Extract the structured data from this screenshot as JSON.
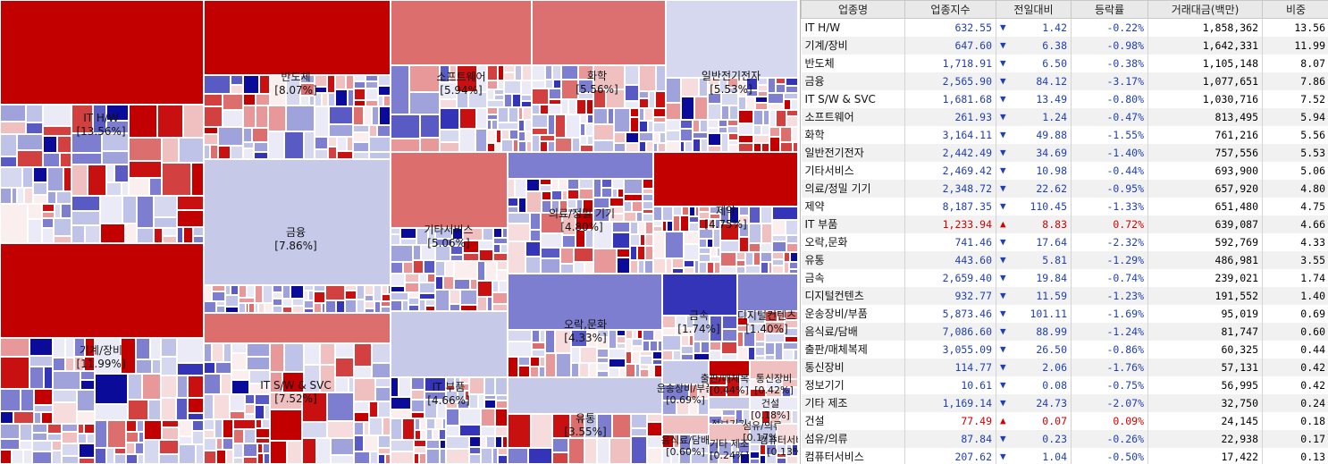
{
  "colors": {
    "up": "#d20000",
    "down": "#1f3fb4",
    "strong_red": "#c30000",
    "strong_blue": "#0b0b9a",
    "neutral": "#c9cbe8"
  },
  "table": {
    "headers": [
      "업종명",
      "업종지수",
      "전일대비",
      "등락률",
      "거래대금(백만)",
      "비중"
    ],
    "rows": [
      {
        "name": "IT H/W",
        "index": "632.55",
        "dir": "down",
        "diff": "1.42",
        "rate": "-0.22%",
        "amount": "1,858,362",
        "weight": "13.56"
      },
      {
        "name": "기계/장비",
        "index": "647.60",
        "dir": "down",
        "diff": "6.38",
        "rate": "-0.98%",
        "amount": "1,642,331",
        "weight": "11.99"
      },
      {
        "name": "반도체",
        "index": "1,718.91",
        "dir": "down",
        "diff": "6.50",
        "rate": "-0.38%",
        "amount": "1,105,148",
        "weight": "8.07"
      },
      {
        "name": "금융",
        "index": "2,565.90",
        "dir": "down",
        "diff": "84.12",
        "rate": "-3.17%",
        "amount": "1,077,651",
        "weight": "7.86"
      },
      {
        "name": "IT S/W & SVC",
        "index": "1,681.68",
        "dir": "down",
        "diff": "13.49",
        "rate": "-0.80%",
        "amount": "1,030,716",
        "weight": "7.52"
      },
      {
        "name": "소프트웨어",
        "index": "261.93",
        "dir": "down",
        "diff": "1.24",
        "rate": "-0.47%",
        "amount": "813,495",
        "weight": "5.94"
      },
      {
        "name": "화학",
        "index": "3,164.11",
        "dir": "down",
        "diff": "49.88",
        "rate": "-1.55%",
        "amount": "761,216",
        "weight": "5.56"
      },
      {
        "name": "일반전기전자",
        "index": "2,442.49",
        "dir": "down",
        "diff": "34.69",
        "rate": "-1.40%",
        "amount": "757,556",
        "weight": "5.53"
      },
      {
        "name": "기타서비스",
        "index": "2,469.42",
        "dir": "down",
        "diff": "10.98",
        "rate": "-0.44%",
        "amount": "693,900",
        "weight": "5.06"
      },
      {
        "name": "의료/정밀 기기",
        "index": "2,348.72",
        "dir": "down",
        "diff": "22.62",
        "rate": "-0.95%",
        "amount": "657,920",
        "weight": "4.80"
      },
      {
        "name": "제약",
        "index": "8,187.35",
        "dir": "down",
        "diff": "110.45",
        "rate": "-1.33%",
        "amount": "651,480",
        "weight": "4.75"
      },
      {
        "name": "IT 부품",
        "index": "1,233.94",
        "dir": "up",
        "diff": "8.83",
        "rate": "0.72%",
        "amount": "639,087",
        "weight": "4.66"
      },
      {
        "name": "오락,문화",
        "index": "741.46",
        "dir": "down",
        "diff": "17.64",
        "rate": "-2.32%",
        "amount": "592,769",
        "weight": "4.33"
      },
      {
        "name": "유통",
        "index": "443.60",
        "dir": "down",
        "diff": "5.81",
        "rate": "-1.29%",
        "amount": "486,981",
        "weight": "3.55"
      },
      {
        "name": "금속",
        "index": "2,659.40",
        "dir": "down",
        "diff": "19.84",
        "rate": "-0.74%",
        "amount": "239,021",
        "weight": "1.74"
      },
      {
        "name": "디지털컨텐츠",
        "index": "932.77",
        "dir": "down",
        "diff": "11.59",
        "rate": "-1.23%",
        "amount": "191,552",
        "weight": "1.40"
      },
      {
        "name": "운송장비/부품",
        "index": "5,873.46",
        "dir": "down",
        "diff": "101.11",
        "rate": "-1.69%",
        "amount": "95,019",
        "weight": "0.69"
      },
      {
        "name": "음식료/담배",
        "index": "7,086.60",
        "dir": "down",
        "diff": "88.99",
        "rate": "-1.24%",
        "amount": "81,747",
        "weight": "0.60"
      },
      {
        "name": "출판/매체복제",
        "index": "3,055.09",
        "dir": "down",
        "diff": "26.50",
        "rate": "-0.86%",
        "amount": "60,325",
        "weight": "0.44"
      },
      {
        "name": "통신장비",
        "index": "114.77",
        "dir": "down",
        "diff": "2.06",
        "rate": "-1.76%",
        "amount": "57,131",
        "weight": "0.42"
      },
      {
        "name": "정보기기",
        "index": "10.61",
        "dir": "down",
        "diff": "0.08",
        "rate": "-0.75%",
        "amount": "56,995",
        "weight": "0.42"
      },
      {
        "name": "기타 제조",
        "index": "1,169.14",
        "dir": "down",
        "diff": "24.73",
        "rate": "-2.07%",
        "amount": "32,750",
        "weight": "0.24"
      },
      {
        "name": "건설",
        "index": "77.49",
        "dir": "up",
        "diff": "0.07",
        "rate": "0.09%",
        "amount": "24,145",
        "weight": "0.18"
      },
      {
        "name": "섬유/의류",
        "index": "87.84",
        "dir": "down",
        "diff": "0.23",
        "rate": "-0.26%",
        "amount": "22,938",
        "weight": "0.17"
      },
      {
        "name": "컴퓨터서비스",
        "index": "207.62",
        "dir": "down",
        "diff": "1.04",
        "rate": "-0.50%",
        "amount": "17,422",
        "weight": "0.13"
      }
    ]
  },
  "treemap": {
    "sectors": [
      {
        "name": "IT H/W",
        "pct": "[13.56%]"
      },
      {
        "name": "기계/장비",
        "pct": "[11.99%]"
      },
      {
        "name": "반도체",
        "pct": "[8.07%]"
      },
      {
        "name": "금융",
        "pct": "[7.86%]"
      },
      {
        "name": "IT S/W & SVC",
        "pct": "[7.52%]"
      },
      {
        "name": "소프트웨어",
        "pct": "[5.94%]"
      },
      {
        "name": "화학",
        "pct": "[5.56%]"
      },
      {
        "name": "일반전기전자",
        "pct": "[5.53%]"
      },
      {
        "name": "기타서비스",
        "pct": "[5.06%]"
      },
      {
        "name": "의료/정밀 기기",
        "pct": "[4.80%]"
      },
      {
        "name": "제약",
        "pct": "[4.75%]"
      },
      {
        "name": "IT 부품",
        "pct": "[4.66%]"
      },
      {
        "name": "오락,문화",
        "pct": "[4.33%]"
      },
      {
        "name": "유통",
        "pct": "[3.55%]"
      },
      {
        "name": "금속",
        "pct": "[1.74%]"
      },
      {
        "name": "디지털컨텐츠",
        "pct": "[1.40%]"
      },
      {
        "name": "운송장비/부품",
        "pct": "[0.69%]"
      },
      {
        "name": "음식료/담배",
        "pct": "[0.60%]"
      },
      {
        "name": "출판/매체복제",
        "pct": "[0.44%]"
      },
      {
        "name": "통신장비",
        "pct": "[0.42%]"
      },
      {
        "name": "정보기기",
        "pct": "[0.42%]"
      },
      {
        "name": "기타 제조",
        "pct": "[0.24%]"
      },
      {
        "name": "건설",
        "pct": "[0.18%]"
      },
      {
        "name": "섬유/의류",
        "pct": "[0.17%]"
      },
      {
        "name": "컴퓨터서비스",
        "pct": "[0.13%]"
      }
    ]
  }
}
